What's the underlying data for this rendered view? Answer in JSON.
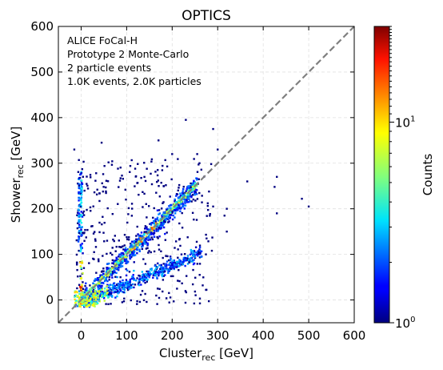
{
  "chart_data": {
    "type": "heatmap",
    "title": "OPTICS",
    "xlabel": {
      "main": "Cluster",
      "sub": "rec",
      "unit": " [GeV]"
    },
    "ylabel": {
      "main": "Shower",
      "sub": "rec",
      "unit": " [GeV]"
    },
    "xlim": [
      -50,
      600
    ],
    "ylim": [
      -50,
      600
    ],
    "xticks": [
      0,
      100,
      200,
      300,
      400,
      500,
      600
    ],
    "yticks": [
      0,
      100,
      200,
      300,
      400,
      500,
      600
    ],
    "grid": true,
    "grid_style": "dashed",
    "reference_line": {
      "from": [
        -50,
        -50
      ],
      "to": [
        600,
        600
      ],
      "style": "dashed",
      "color": "#808080"
    },
    "annotation": [
      "ALICE FoCal-H",
      "Prototype 2 Monte-Carlo",
      "2 particle events",
      "1.0K events, 2.0K particles"
    ],
    "colorbar": {
      "label": "Counts",
      "scale": "log",
      "range": [
        1,
        30
      ],
      "colormap": "jet",
      "tick_labels": [
        {
          "base": "10",
          "exp": "0",
          "value": 1
        },
        {
          "base": "10",
          "exp": "1",
          "value": 10
        }
      ]
    },
    "clusters": [
      {
        "description": "main diagonal band",
        "x_range": [
          0,
          260
        ],
        "y_range": [
          0,
          260
        ],
        "peak_counts": 20
      },
      {
        "description": "lower band",
        "x_range": [
          20,
          260
        ],
        "y_range": [
          0,
          110
        ],
        "peak_counts": 8
      },
      {
        "description": "vertical strip at zero",
        "x_range": [
          -5,
          5
        ],
        "y_range": [
          -20,
          300
        ],
        "peak_counts": 25
      },
      {
        "description": "scattered points",
        "x_range": [
          -10,
          500
        ],
        "y_range": [
          -10,
          400
        ],
        "peak_counts": 1
      }
    ]
  }
}
